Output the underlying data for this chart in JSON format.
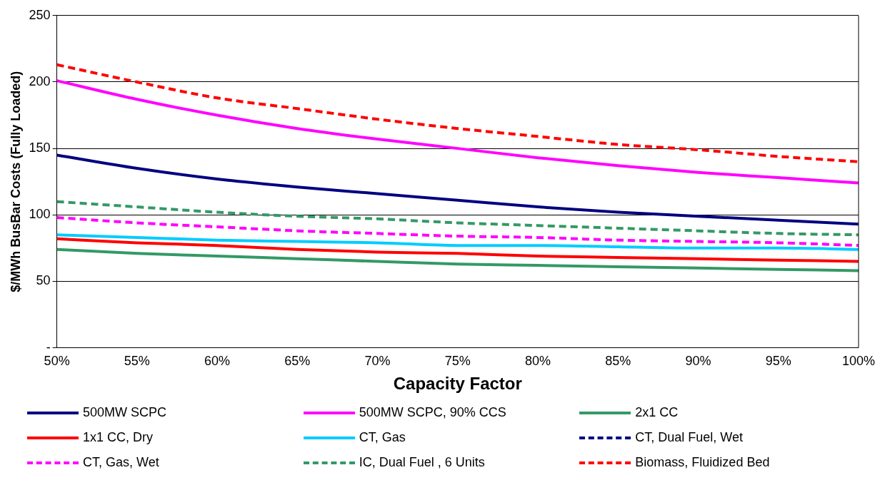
{
  "chart_data": {
    "type": "line",
    "xlabel": "Capacity Factor",
    "ylabel": "$/MWh BusBar Costs (Fully Loaded)",
    "x": [
      50,
      55,
      60,
      65,
      70,
      75,
      80,
      85,
      90,
      95,
      100
    ],
    "xlim": [
      50,
      100
    ],
    "xticks": [
      {
        "value": 50,
        "label": "50%"
      },
      {
        "value": 55,
        "label": "55%"
      },
      {
        "value": 60,
        "label": "60%"
      },
      {
        "value": 65,
        "label": "65%"
      },
      {
        "value": 70,
        "label": "70%"
      },
      {
        "value": 75,
        "label": "75%"
      },
      {
        "value": 80,
        "label": "80%"
      },
      {
        "value": 85,
        "label": "85%"
      },
      {
        "value": 90,
        "label": "90%"
      },
      {
        "value": 95,
        "label": "95%"
      },
      {
        "value": 100,
        "label": "100%"
      }
    ],
    "ylim": [
      0,
      250
    ],
    "yticks": [
      {
        "value": 0,
        "label": "-"
      },
      50,
      100,
      150,
      200,
      250
    ],
    "grid": "y",
    "legend": "bottom",
    "marker": "none",
    "series": [
      {
        "name": "500MW SCPC",
        "color": "#000080",
        "line_style": "solid",
        "values": [
          145,
          135,
          127,
          121,
          116,
          111,
          106,
          102,
          99,
          96,
          93
        ]
      },
      {
        "name": "500MW SCPC, 90% CCS",
        "color": "#ff00ff",
        "line_style": "solid",
        "values": [
          201,
          187,
          175,
          165,
          157,
          150,
          143,
          137,
          132,
          128,
          124
        ]
      },
      {
        "name": "2x1 CC",
        "color": "#339966",
        "line_style": "solid",
        "values": [
          74,
          71,
          69,
          67,
          65,
          63,
          62,
          61,
          60,
          59,
          58
        ]
      },
      {
        "name": "1x1 CC, Dry",
        "color": "#ff0000",
        "line_style": "solid",
        "values": [
          82,
          79,
          77,
          74,
          72,
          71,
          69,
          68,
          67,
          66,
          65
        ]
      },
      {
        "name": "CT, Gas",
        "color": "#00ccff",
        "line_style": "solid",
        "values": [
          85,
          83,
          81,
          80,
          79,
          77,
          77,
          76,
          75,
          75,
          74
        ]
      },
      {
        "name": "CT, Dual Fuel, Wet",
        "color": "#000080",
        "line_style": "dashed",
        "values": [
          null,
          null,
          null,
          null,
          null,
          null,
          null,
          null,
          null,
          null,
          null
        ]
      },
      {
        "name": "CT, Gas, Wet",
        "color": "#ff00ff",
        "line_style": "dashed",
        "values": [
          98,
          94,
          91,
          88,
          86,
          84,
          83,
          81,
          80,
          79,
          77
        ]
      },
      {
        "name": "IC, Dual Fuel , 6 Units",
        "color": "#339966",
        "line_style": "dashed",
        "values": [
          110,
          106,
          102,
          99,
          97,
          94,
          92,
          90,
          88,
          86,
          85
        ]
      },
      {
        "name": "Biomass, Fluidized Bed",
        "color": "#ff0000",
        "line_style": "dashed",
        "values": [
          213,
          200,
          188,
          180,
          172,
          165,
          159,
          153,
          149,
          144,
          140
        ]
      }
    ]
  }
}
